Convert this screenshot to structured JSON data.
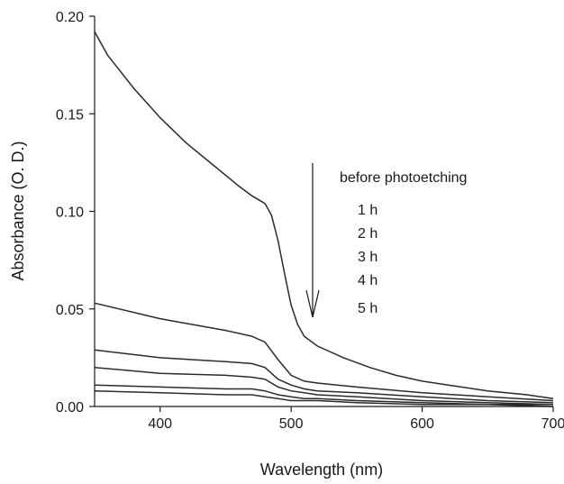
{
  "chart_data": {
    "type": "line",
    "title": "",
    "xlabel": "Wavelength (nm)",
    "ylabel": "Absorbance (O. D.)",
    "xlim": [
      350,
      700
    ],
    "ylim": [
      0.0,
      0.2
    ],
    "xticks": [
      400,
      500,
      600,
      700
    ],
    "yticks": [
      "0.00",
      "0.05",
      "0.10",
      "0.15",
      "0.20"
    ],
    "grid": false,
    "legend_position": "right",
    "legend": [
      "before photoetching",
      "1 h",
      "2 h",
      "3 h",
      "4 h",
      "5 h"
    ],
    "annotation": "downward arrow",
    "series": [
      {
        "name": "before photoetching",
        "x": [
          350,
          360,
          380,
          400,
          420,
          440,
          460,
          470,
          480,
          485,
          490,
          495,
          500,
          505,
          510,
          520,
          540,
          560,
          580,
          600,
          620,
          650,
          680,
          700
        ],
        "values": [
          0.192,
          0.18,
          0.163,
          0.148,
          0.135,
          0.124,
          0.113,
          0.108,
          0.104,
          0.098,
          0.085,
          0.068,
          0.052,
          0.042,
          0.036,
          0.031,
          0.025,
          0.02,
          0.016,
          0.013,
          0.011,
          0.008,
          0.006,
          0.004
        ]
      },
      {
        "name": "1 h",
        "x": [
          350,
          400,
          450,
          470,
          480,
          490,
          500,
          510,
          520,
          550,
          600,
          650,
          700
        ],
        "values": [
          0.053,
          0.045,
          0.039,
          0.036,
          0.033,
          0.024,
          0.016,
          0.013,
          0.012,
          0.01,
          0.007,
          0.005,
          0.003
        ]
      },
      {
        "name": "2 h",
        "x": [
          350,
          400,
          450,
          470,
          480,
          490,
          500,
          510,
          520,
          550,
          600,
          650,
          700
        ],
        "values": [
          0.029,
          0.025,
          0.023,
          0.022,
          0.02,
          0.014,
          0.011,
          0.009,
          0.008,
          0.007,
          0.005,
          0.003,
          0.002
        ]
      },
      {
        "name": "3 h",
        "x": [
          350,
          400,
          450,
          470,
          480,
          490,
          500,
          510,
          520,
          550,
          600,
          650,
          700
        ],
        "values": [
          0.02,
          0.017,
          0.016,
          0.015,
          0.014,
          0.01,
          0.008,
          0.007,
          0.006,
          0.005,
          0.003,
          0.002,
          0.001
        ]
      },
      {
        "name": "4 h",
        "x": [
          350,
          400,
          450,
          470,
          480,
          490,
          500,
          510,
          520,
          550,
          600,
          650,
          700
        ],
        "values": [
          0.011,
          0.01,
          0.009,
          0.009,
          0.008,
          0.006,
          0.005,
          0.004,
          0.004,
          0.003,
          0.002,
          0.001,
          0.001
        ]
      },
      {
        "name": "5 h",
        "x": [
          350,
          400,
          450,
          470,
          480,
          490,
          500,
          510,
          520,
          550,
          600,
          650,
          700
        ],
        "values": [
          0.008,
          0.007,
          0.006,
          0.006,
          0.005,
          0.004,
          0.003,
          0.003,
          0.003,
          0.002,
          0.001,
          0.001,
          0.0
        ]
      }
    ],
    "line_color": "#2b2b2b"
  }
}
